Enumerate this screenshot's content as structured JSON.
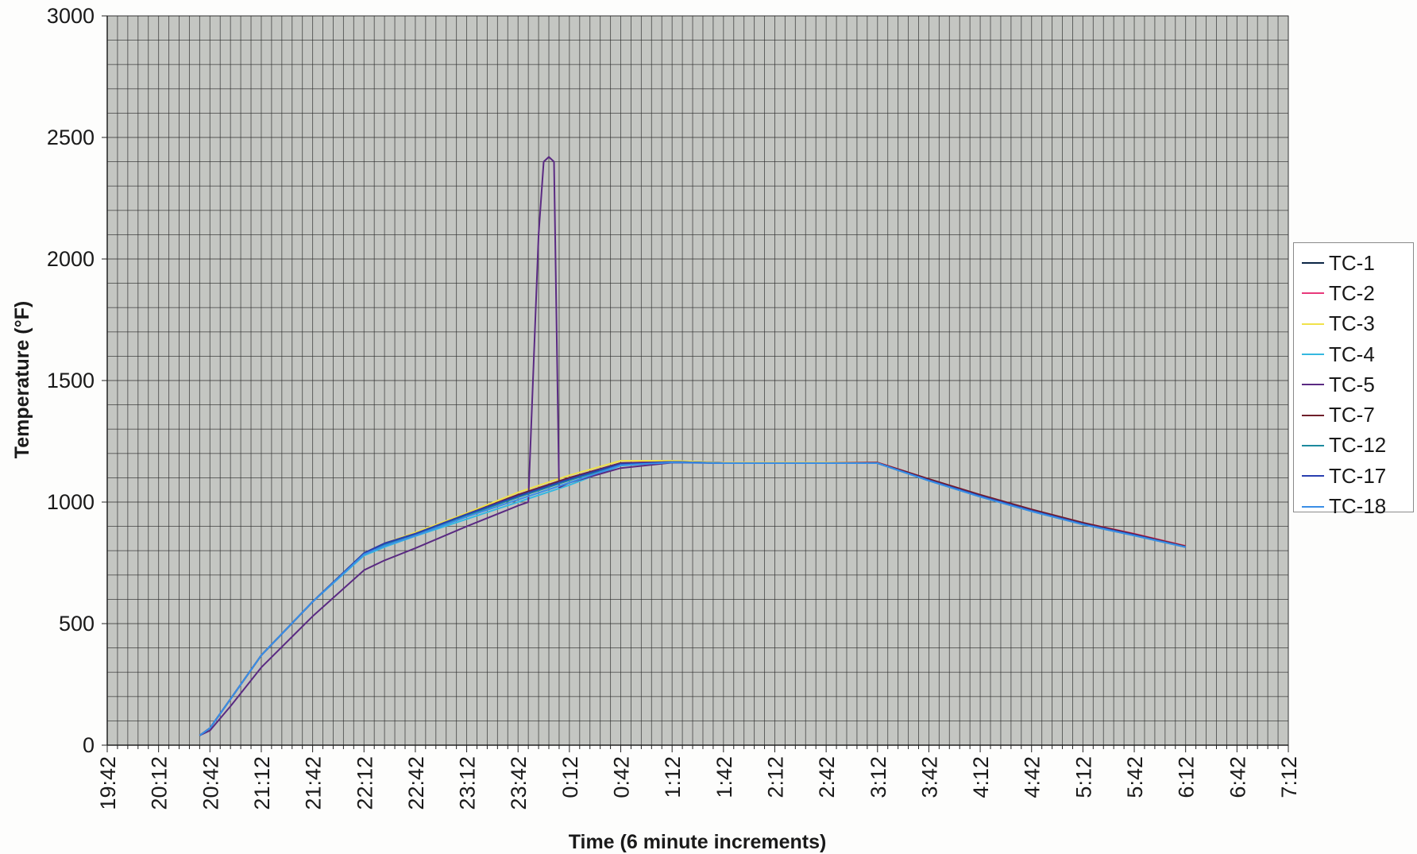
{
  "chart_data": {
    "type": "line",
    "title": "",
    "xlabel": "Time (6 minute increments)",
    "ylabel": "Temperature (°F)",
    "ylim": [
      0,
      3000
    ],
    "y_ticks": [
      0,
      500,
      1000,
      1500,
      2000,
      2500,
      3000
    ],
    "x_range_minutes": [
      1182,
      1872
    ],
    "x_ticks": [
      "19:42",
      "20:12",
      "20:42",
      "21:12",
      "21:42",
      "22:12",
      "22:42",
      "23:12",
      "23:42",
      "0:12",
      "0:42",
      "1:12",
      "1:42",
      "2:12",
      "2:42",
      "3:12",
      "3:42",
      "4:12",
      "4:42",
      "5:12",
      "5:42",
      "6:12",
      "6:42",
      "7:12"
    ],
    "grid": true,
    "legend_position": "right",
    "plot_background": "#c4c6c2",
    "series": [
      {
        "name": "TC-1",
        "color": "#0b2545",
        "x": [
          "20:36",
          "20:42",
          "20:54",
          "21:12",
          "21:42",
          "22:12",
          "22:24",
          "22:42",
          "23:12",
          "23:42",
          "0:12",
          "0:42",
          "1:12",
          "1:42",
          "2:12",
          "2:42",
          "3:12",
          "3:42",
          "4:12",
          "4:42",
          "5:12",
          "5:42",
          "6:12"
        ],
        "y": [
          40,
          70,
          190,
          370,
          590,
          790,
          830,
          870,
          950,
          1030,
          1100,
          1160,
          1165,
          1160,
          1160,
          1160,
          1160,
          1090,
          1025,
          965,
          910,
          865,
          815
        ]
      },
      {
        "name": "TC-2",
        "color": "#e8397b",
        "x": [
          "20:36",
          "20:42",
          "20:54",
          "21:12",
          "21:42",
          "22:12",
          "22:24",
          "22:42",
          "23:12",
          "23:42",
          "0:12",
          "0:42",
          "1:12",
          "1:42",
          "2:12",
          "2:42",
          "3:12",
          "3:42",
          "4:12",
          "4:42",
          "5:12",
          "5:42",
          "6:12"
        ],
        "y": [
          40,
          70,
          190,
          370,
          590,
          790,
          830,
          870,
          950,
          1030,
          1100,
          1160,
          1168,
          1162,
          1162,
          1162,
          1163,
          1095,
          1030,
          970,
          915,
          870,
          820
        ]
      },
      {
        "name": "TC-3",
        "color": "#f0e24a",
        "x": [
          "20:36",
          "20:42",
          "20:54",
          "21:12",
          "21:42",
          "22:12",
          "22:24",
          "22:42",
          "23:12",
          "23:42",
          "0:12",
          "0:42",
          "1:12",
          "1:42",
          "2:12",
          "2:42",
          "3:12",
          "3:42",
          "4:12",
          "4:42",
          "5:12",
          "5:42",
          "6:12"
        ],
        "y": [
          40,
          70,
          190,
          370,
          590,
          790,
          830,
          875,
          955,
          1040,
          1110,
          1170,
          1170,
          1162,
          1162,
          1162,
          1162,
          1092,
          1027,
          967,
          912,
          867,
          818
        ]
      },
      {
        "name": "TC-4",
        "color": "#35b8e0",
        "x": [
          "20:36",
          "20:42",
          "20:54",
          "21:12",
          "21:42",
          "22:12",
          "22:24",
          "22:42",
          "23:12",
          "23:42",
          "0:12",
          "0:42",
          "1:12",
          "1:42",
          "2:12",
          "2:42",
          "3:12",
          "3:42",
          "4:12",
          "4:42",
          "5:12",
          "5:42",
          "6:12"
        ],
        "y": [
          40,
          70,
          190,
          370,
          590,
          780,
          815,
          860,
          930,
          1000,
          1070,
          1150,
          1165,
          1160,
          1160,
          1160,
          1160,
          1088,
          1022,
          962,
          908,
          862,
          815
        ]
      },
      {
        "name": "TC-5",
        "color": "#5a2a82",
        "x": [
          "20:36",
          "20:42",
          "20:54",
          "21:12",
          "21:42",
          "22:12",
          "22:24",
          "22:42",
          "23:12",
          "23:42",
          "23:48",
          "23:54",
          "23:57",
          "0:00",
          "0:03",
          "0:06",
          "0:12",
          "0:42",
          "1:12",
          "1:42",
          "2:12",
          "2:42",
          "3:12",
          "3:42",
          "4:12",
          "4:42",
          "5:12",
          "5:42",
          "6:12"
        ],
        "y": [
          40,
          60,
          160,
          320,
          530,
          720,
          760,
          810,
          900,
          985,
          1000,
          2100,
          2400,
          2420,
          2400,
          1060,
          1080,
          1140,
          1162,
          1160,
          1160,
          1160,
          1160,
          1090,
          1025,
          965,
          912,
          865,
          818
        ]
      },
      {
        "name": "TC-7",
        "color": "#6e1f2a",
        "x": [
          "20:36",
          "20:42",
          "20:54",
          "21:12",
          "21:42",
          "22:12",
          "22:24",
          "22:42",
          "23:12",
          "23:42",
          "0:12",
          "0:42",
          "1:12",
          "1:42",
          "2:12",
          "2:42",
          "3:12",
          "3:42",
          "4:12",
          "4:42",
          "5:12",
          "5:42",
          "6:12"
        ],
        "y": [
          40,
          70,
          190,
          370,
          590,
          790,
          830,
          870,
          950,
          1030,
          1100,
          1160,
          1165,
          1160,
          1160,
          1160,
          1162,
          1095,
          1030,
          970,
          915,
          868,
          818
        ]
      },
      {
        "name": "TC-12",
        "color": "#1d8a9e",
        "x": [
          "20:36",
          "20:42",
          "20:54",
          "21:12",
          "21:42",
          "22:12",
          "22:24",
          "22:42",
          "23:12",
          "23:42",
          "0:12",
          "0:42",
          "1:12",
          "1:42",
          "2:12",
          "2:42",
          "3:12",
          "3:42",
          "4:12",
          "4:42",
          "5:12",
          "5:42",
          "6:12"
        ],
        "y": [
          40,
          70,
          190,
          370,
          590,
          790,
          825,
          865,
          945,
          1020,
          1090,
          1155,
          1165,
          1160,
          1160,
          1160,
          1160,
          1088,
          1022,
          962,
          908,
          862,
          815
        ]
      },
      {
        "name": "TC-17",
        "color": "#2a3fb0",
        "x": [
          "20:36",
          "20:42",
          "20:54",
          "21:12",
          "21:42",
          "22:12",
          "22:24",
          "22:42",
          "23:12",
          "23:42",
          "0:12",
          "0:42",
          "1:12",
          "1:42",
          "2:12",
          "2:42",
          "3:12",
          "3:42",
          "4:12",
          "4:42",
          "5:12",
          "5:42",
          "6:12"
        ],
        "y": [
          40,
          70,
          190,
          370,
          590,
          790,
          830,
          870,
          950,
          1025,
          1095,
          1158,
          1165,
          1160,
          1160,
          1160,
          1160,
          1090,
          1025,
          965,
          910,
          865,
          815
        ]
      },
      {
        "name": "TC-18",
        "color": "#3a8ee6",
        "x": [
          "20:36",
          "20:42",
          "20:54",
          "21:12",
          "21:42",
          "22:12",
          "22:24",
          "22:42",
          "23:12",
          "23:42",
          "0:12",
          "0:42",
          "1:12",
          "1:42",
          "2:12",
          "2:42",
          "3:12",
          "3:42",
          "4:12",
          "4:42",
          "5:12",
          "5:42",
          "6:12"
        ],
        "y": [
          40,
          70,
          190,
          370,
          590,
          785,
          820,
          862,
          940,
          1010,
          1080,
          1152,
          1163,
          1160,
          1160,
          1160,
          1160,
          1088,
          1022,
          962,
          908,
          862,
          815
        ]
      }
    ]
  }
}
